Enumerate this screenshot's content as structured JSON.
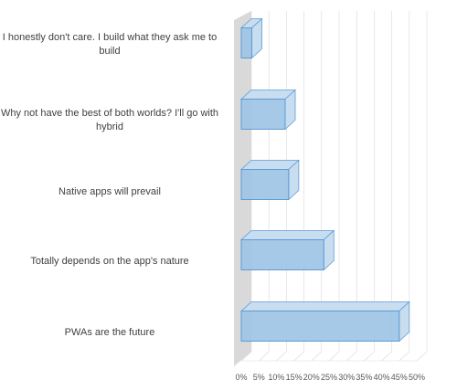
{
  "chart_data": {
    "type": "bar",
    "orientation": "horizontal",
    "style": "3d",
    "categories": [
      "I honestly don't care. I build what they ask me to build",
      "Why not have the best of both worlds? I'll go with hybrid",
      "Native apps will prevail",
      "Totally depends on the app's nature",
      "PWAs are the future"
    ],
    "values": [
      3,
      12.5,
      13.5,
      23.5,
      45
    ],
    "xlim": [
      0,
      50
    ],
    "xticks": [
      "0%",
      "5%",
      "10%",
      "15%",
      "20%",
      "25%",
      "30%",
      "35%",
      "40%",
      "45%",
      "50%"
    ],
    "title": "",
    "xlabel": "",
    "ylabel": "",
    "grid": true,
    "legend": "none",
    "colors": {
      "bar_fill": "#9dc3e6",
      "bar_edge": "#5b9bd5",
      "bar_side": "#c9ddf0",
      "wall": "#d9d9d9",
      "grid": "#d9d9d9"
    }
  }
}
